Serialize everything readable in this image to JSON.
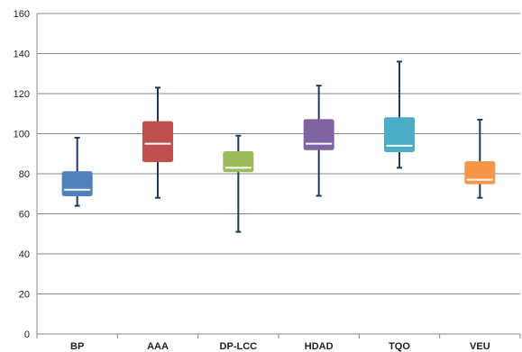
{
  "chart_data": {
    "type": "boxplot",
    "title": "",
    "xlabel": "",
    "ylabel": "",
    "ylim": [
      0,
      160
    ],
    "yticks": [
      0,
      20,
      40,
      60,
      80,
      100,
      120,
      140,
      160
    ],
    "grid": true,
    "legend": "none",
    "categories": [
      "BP",
      "AAA",
      "DP-LCC",
      "HDAD",
      "TQO",
      "VEU"
    ],
    "boxes": [
      {
        "category": "BP",
        "min": 64,
        "q1": 69,
        "median": 72,
        "q3": 81,
        "max": 98,
        "color": "#4f81bd"
      },
      {
        "category": "AAA",
        "min": 68,
        "q1": 86,
        "median": 95,
        "q3": 106,
        "max": 123,
        "color": "#c0504d"
      },
      {
        "category": "DP-LCC",
        "min": 51,
        "q1": 81,
        "median": 83,
        "q3": 91,
        "max": 99,
        "color": "#9bbb59"
      },
      {
        "category": "HDAD",
        "min": 69,
        "q1": 92,
        "median": 95,
        "q3": 107,
        "max": 124,
        "color": "#8064a2"
      },
      {
        "category": "TQO",
        "min": 83,
        "q1": 91,
        "median": 94,
        "q3": 108,
        "max": 136,
        "color": "#4bacc6"
      },
      {
        "category": "VEU",
        "min": 68,
        "q1": 75,
        "median": 77,
        "q3": 86,
        "max": 107,
        "color": "#f79646"
      }
    ],
    "colors": {
      "whisker": "#1f3864",
      "grid": "#888888",
      "axis": "#888888",
      "median": "#ffffff"
    }
  }
}
